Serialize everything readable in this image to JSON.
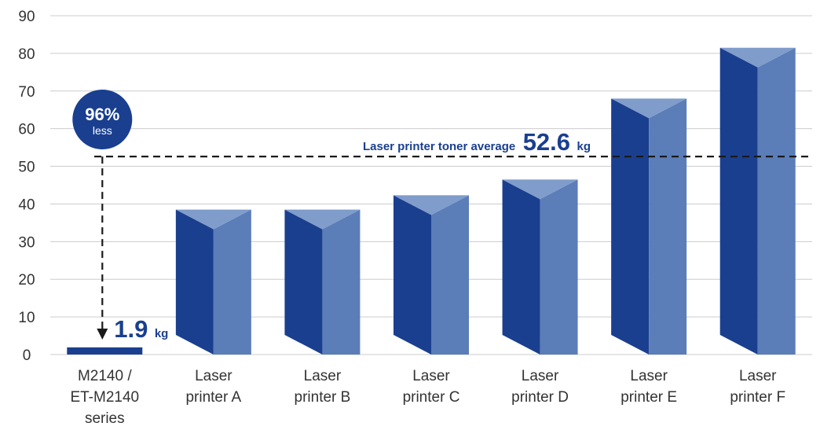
{
  "chart_data": {
    "type": "bar",
    "title": "",
    "xlabel": "",
    "ylabel": "",
    "ylim": [
      0,
      90
    ],
    "yticks": [
      "0",
      "10",
      "20",
      "30",
      "40",
      "50",
      "60",
      "70",
      "80",
      "90"
    ],
    "grid": true,
    "categories": [
      [
        "M2140 /",
        "ET-M2140",
        "series"
      ],
      [
        "Laser",
        "printer A"
      ],
      [
        "Laser",
        "printer B"
      ],
      [
        "Laser",
        "printer C"
      ],
      [
        "Laser",
        "printer D"
      ],
      [
        "Laser",
        "printer E"
      ],
      [
        "Laser",
        "printer F"
      ]
    ],
    "values": [
      1.9,
      38.5,
      38.5,
      42.3,
      46.5,
      68,
      81.5
    ],
    "reference_line": {
      "value": 52.6,
      "label": "Laser printer toner average",
      "value_text": "52.6",
      "unit": "kg"
    },
    "annotations": {
      "first_value_text": "1.9",
      "first_unit": "kg",
      "badge_percent": "96%",
      "badge_text": "less"
    },
    "colors": {
      "bar_dark": "#1a3f8f",
      "bar_light": "#5b7db8",
      "bar_top": "#7f9ccb",
      "badge": "#1a3f8f",
      "text_blue": "#1a3f8f",
      "grid": "#cccccc",
      "axis_text": "#333333"
    }
  }
}
